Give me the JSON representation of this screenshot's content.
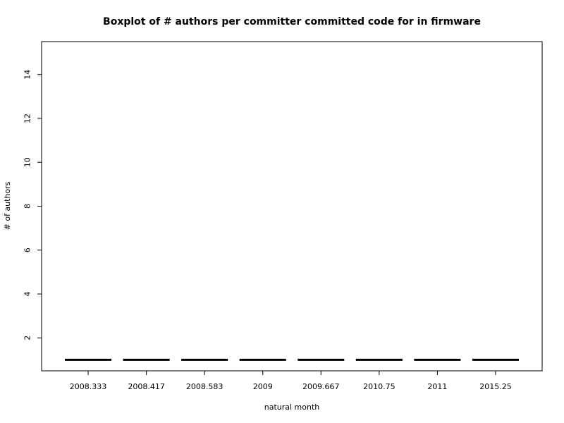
{
  "chart_data": {
    "type": "boxplot",
    "title": "Boxplot of # authors per committer committed code for in firmware",
    "xlabel": "natural month",
    "ylabel": "# of authors",
    "categories": [
      "2008.333",
      "2008.417",
      "2008.583",
      "2009",
      "2009.667",
      "2010.75",
      "2011",
      "2015.25"
    ],
    "series": [
      {
        "values": [
          1,
          1,
          1,
          1,
          1,
          1,
          1,
          1
        ]
      }
    ],
    "yticks": [
      2,
      4,
      6,
      8,
      10,
      12,
      14
    ],
    "ylim": [
      0.5,
      15.5
    ],
    "grid": false,
    "colors": {
      "box": "#000000",
      "frame": "#000000",
      "background": "#ffffff"
    }
  }
}
